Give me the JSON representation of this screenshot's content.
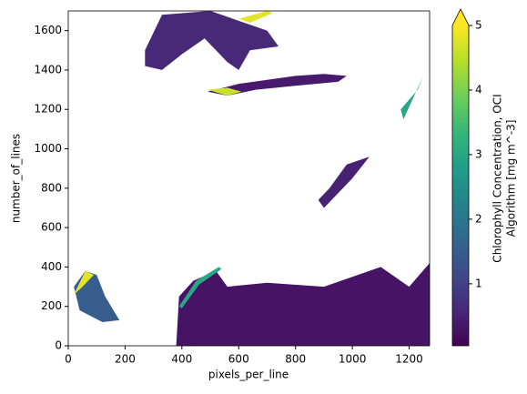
{
  "chart_data": {
    "type": "raster",
    "xlabel": "pixels_per_line",
    "ylabel": "number_of_lines",
    "xlim": [
      0,
      1272
    ],
    "ylim": [
      0,
      1700
    ],
    "xticks": [
      0,
      200,
      400,
      600,
      800,
      1000,
      1200
    ],
    "yticks": [
      0,
      200,
      400,
      600,
      800,
      1000,
      1200,
      1400,
      1600
    ],
    "colormap": "viridis",
    "clim": [
      0.04,
      5
    ],
    "colorbar_ticks": [
      1,
      2,
      3,
      4,
      5
    ],
    "colorbar_extend": "max",
    "colorbar_label": [
      "Chlorophyll Concentration, OCI",
      "Algorithm [mg m^-3]"
    ],
    "regions": [
      {
        "x": [
          270,
          330,
          500,
          620,
          700,
          740,
          640,
          600,
          560,
          480,
          400,
          330,
          270
        ],
        "y": [
          1500,
          1680,
          1700,
          1640,
          1600,
          1520,
          1500,
          1400,
          1440,
          1560,
          1480,
          1400,
          1420
        ],
        "value": 0.6
      },
      {
        "x": [
          490,
          600,
          800,
          900,
          980,
          950,
          800,
          660,
          560
        ],
        "y": [
          1290,
          1330,
          1370,
          1380,
          1370,
          1340,
          1320,
          1300,
          1270
        ],
        "value": 0.4
      },
      {
        "x": [
          490,
          560,
          610,
          560
        ],
        "y": [
          1300,
          1310,
          1290,
          1270
        ],
        "value": 4.6
      },
      {
        "x": [
          600,
          700,
          720,
          640
        ],
        "y": [
          1660,
          1700,
          1690,
          1640
        ],
        "value": 4.8
      },
      {
        "x": [
          900,
          1000,
          1060,
          980,
          920,
          880
        ],
        "y": [
          700,
          850,
          960,
          920,
          800,
          740
        ],
        "value": 0.5
      },
      {
        "x": [
          1180,
          1250,
          1230,
          1170
        ],
        "y": [
          1150,
          1370,
          1300,
          1200
        ],
        "value": 3
      },
      {
        "x": [
          380,
          390,
          440,
          520,
          560,
          700,
          900,
          1100,
          1200,
          1272,
          1272
        ],
        "y": [
          0,
          250,
          330,
          380,
          300,
          320,
          300,
          400,
          300,
          420,
          0
        ],
        "value": 0.3
      },
      {
        "x": [
          20,
          60,
          100,
          130,
          180,
          120,
          40
        ],
        "y": [
          300,
          380,
          360,
          250,
          130,
          120,
          180
        ],
        "value": 1.5
      },
      {
        "x": [
          20,
          60,
          90,
          50
        ],
        "y": [
          260,
          380,
          360,
          300
        ],
        "value": 4.8
      },
      {
        "x": [
          390,
          450,
          530,
          540,
          460,
          400
        ],
        "y": [
          200,
          330,
          400,
          390,
          310,
          190
        ],
        "value": 3
      }
    ]
  }
}
